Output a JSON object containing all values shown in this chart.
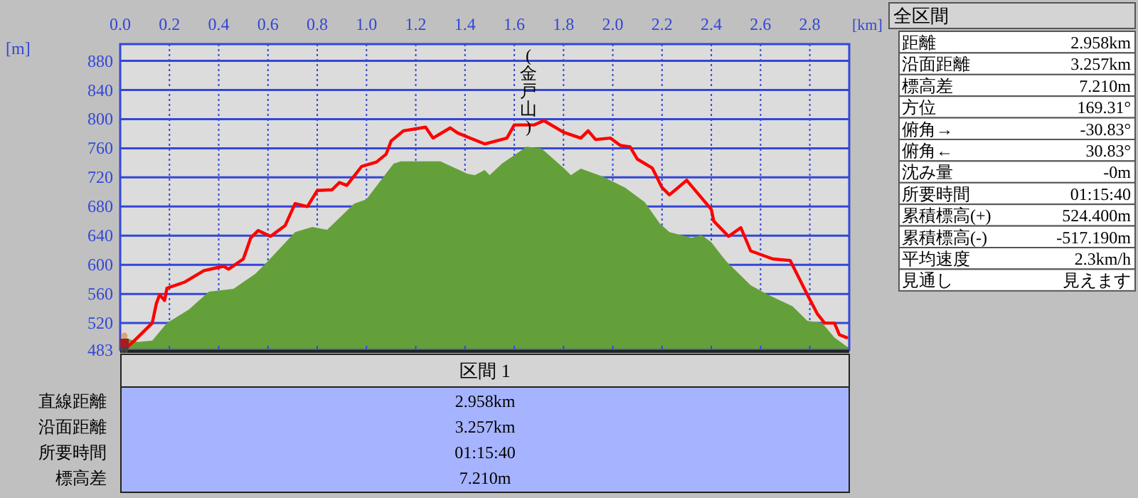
{
  "chart_data": [
    {
      "type": "area",
      "xlabel": "[km]",
      "ylabel": "[m]",
      "xlim": [
        0,
        2.96
      ],
      "ylim": [
        483,
        903
      ],
      "xticks": [
        {
          "value": 0,
          "label": "0.0"
        },
        0.2,
        0.4,
        0.6,
        0.8,
        {
          "value": 1,
          "label": "1.0"
        },
        1.2,
        1.4,
        1.6,
        1.8,
        {
          "value": 2,
          "label": "2.0"
        },
        2.2,
        2.4,
        2.6,
        2.8
      ],
      "yticks": [
        483,
        520,
        560,
        600,
        640,
        680,
        720,
        760,
        800,
        840,
        880
      ],
      "grid": true,
      "annotations": [
        "(金戸山)"
      ],
      "series": [
        {
          "type": "area",
          "color": "#64a03a",
          "x": [
            0,
            0.02,
            0.07,
            0.13,
            0.19,
            0.28,
            0.36,
            0.46,
            0.55,
            0.6,
            0.71,
            0.78,
            0.84,
            0.95,
            1,
            1.11,
            1.14,
            1.3,
            1.41,
            1.44,
            1.48,
            1.5,
            1.55,
            1.65,
            1.71,
            1.8,
            1.83,
            1.87,
            1.96,
            2.05,
            2.13,
            2.19,
            2.23,
            2.32,
            2.36,
            2.4,
            2.46,
            2.56,
            2.63,
            2.73,
            2.79,
            2.85,
            2.9,
            2.95,
            2.96
          ],
          "values": [
            490,
            500,
            494,
            496,
            520,
            539,
            563,
            567,
            588,
            605,
            645,
            652,
            648,
            684,
            690,
            739,
            742,
            742,
            725,
            723,
            730,
            723,
            739,
            762,
            760,
            733,
            723,
            732,
            721,
            706,
            686,
            657,
            645,
            637,
            641,
            631,
            605,
            572,
            559,
            543,
            523,
            520,
            500,
            488,
            486
          ]
        },
        {
          "type": "line",
          "color": "#ff0000",
          "x": [
            0.02,
            0.07,
            0.13,
            0.147,
            0.16,
            0.18,
            0.19,
            0.26,
            0.34,
            0.42,
            0.44,
            0.5,
            0.53,
            0.56,
            0.61,
            0.67,
            0.71,
            0.76,
            0.8,
            0.86,
            0.89,
            0.92,
            0.98,
            1.04,
            1.08,
            1.1,
            1.15,
            1.24,
            1.27,
            1.34,
            1.37,
            1.42,
            1.48,
            1.57,
            1.6,
            1.68,
            1.72,
            1.8,
            1.87,
            1.9,
            1.93,
            1.99,
            2.03,
            2.07,
            2.1,
            2.16,
            2.2,
            2.23,
            2.3,
            2.4,
            2.41,
            2.47,
            2.52,
            2.56,
            2.65,
            2.72,
            2.79,
            2.83,
            2.86,
            2.9,
            2.92,
            2.95
          ],
          "values": [
            484,
            500,
            520,
            547,
            559,
            551,
            568,
            576,
            592,
            598,
            594,
            608,
            637,
            647,
            639,
            654,
            684,
            680,
            702,
            703,
            713,
            709,
            735,
            741,
            752,
            770,
            784,
            789,
            774,
            788,
            781,
            774,
            766,
            774,
            792,
            792,
            798,
            782,
            774,
            784,
            772,
            774,
            764,
            762,
            745,
            733,
            706,
            696,
            716,
            676,
            660,
            639,
            651,
            619,
            608,
            606,
            559,
            533,
            520,
            520,
            504,
            500
          ]
        }
      ]
    },
    {
      "type": "other",
      "title": "全区間",
      "categories": [
        "距離",
        "沿面距離",
        "標高差",
        "方位",
        "俯角→",
        "俯角←",
        "沈み量",
        "所要時間",
        "累積標高(+)",
        "累積標高(-)",
        "平均速度",
        "見通し"
      ],
      "value_labels": [
        "2.958km",
        "3.257km",
        "7.210m",
        "169.31°",
        "-30.83°",
        "30.83°",
        "-0m",
        "01:15:40",
        "524.400m",
        "-517.190m",
        "2.3km/h",
        "見えます"
      ]
    },
    {
      "type": "other",
      "title": "区間 1",
      "categories": [
        "直線距離",
        "沿面距離",
        "所要時間",
        "標高差"
      ],
      "value_labels": [
        "2.958km",
        "3.257km",
        "01:15:40",
        "7.210m"
      ]
    }
  ]
}
